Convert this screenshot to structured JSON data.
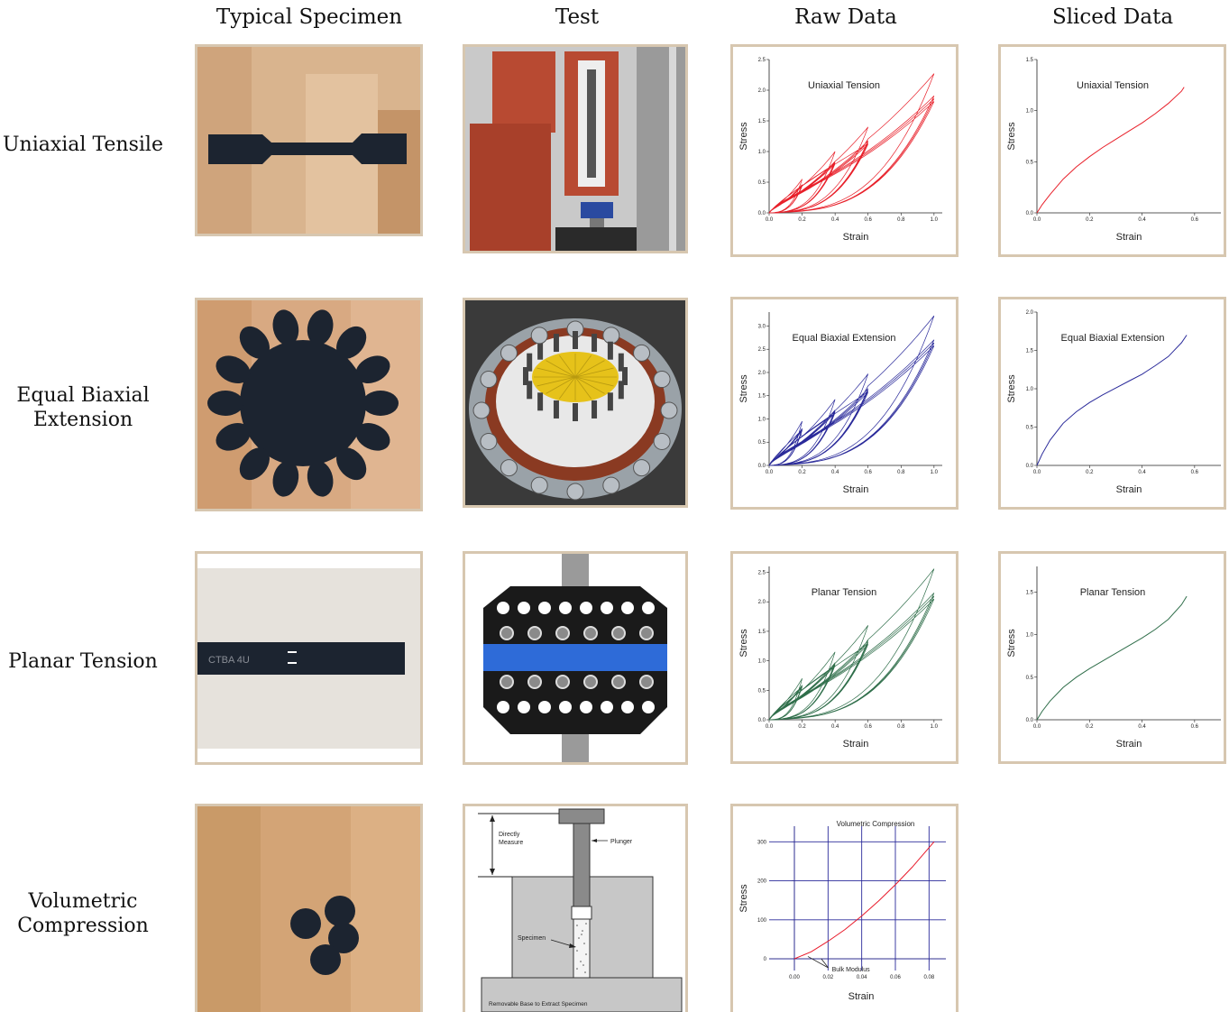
{
  "columns": {
    "specimen": "Typical Specimen",
    "test": "Test",
    "raw": "Raw Data",
    "sliced": "Sliced Data"
  },
  "rows": {
    "uniaxial": "Uniaxial Tensile",
    "biaxial_1": "Equal Biaxial",
    "biaxial_2": "Extension",
    "planar": "Planar Tension",
    "volumetric_1": "Volumetric",
    "volumetric_2": "Compression"
  },
  "colors": {
    "frame": "#d7c7b0",
    "uniaxial": "#e8202a",
    "biaxial": "#2a2a9a",
    "planar": "#2f6e4a",
    "volumetric": "#e81a2a",
    "grid": "#2a2a9a"
  },
  "test_labels": {
    "directly": "Directly",
    "measure": "Measure",
    "plunger": "Plunger",
    "specimen": "Specimen",
    "base": "Removable Base to Extract Specimen",
    "writing": "CTBA 4U"
  },
  "chart_data": [
    {
      "id": "raw-uniaxial",
      "type": "line",
      "title": "Uniaxial Tension",
      "xlabel": "Strain",
      "ylabel": "Stress",
      "xlim": [
        0,
        1.05
      ],
      "ylim": [
        0,
        2.5
      ],
      "xticks": [
        "0.0",
        "0.2",
        "0.4",
        "0.6",
        "0.8",
        "1.0"
      ],
      "yticks": [
        "0.0",
        "0.5",
        "1.0",
        "1.5",
        "2.0",
        "2.5"
      ],
      "ytick_values": [
        0,
        0.5,
        1.0,
        1.5,
        2.0,
        2.5
      ],
      "series": [
        {
          "max_strains": [
            0.2,
            0.4,
            0.6,
            1.0
          ],
          "peak_stresses": [
            0.55,
            1.0,
            1.4,
            2.27
          ]
        }
      ]
    },
    {
      "id": "sliced-uniaxial",
      "type": "line",
      "title": "Uniaxial Tension",
      "xlabel": "Strain",
      "ylabel": "Stress",
      "xlim": [
        0,
        0.7
      ],
      "ylim": [
        0,
        1.5
      ],
      "xticks": [
        "0.0",
        "0.2",
        "0.4",
        "0.6"
      ],
      "yticks": [
        "0.0",
        "0.5",
        "1.0",
        "1.5"
      ],
      "ytick_values": [
        0,
        0.5,
        1.0,
        1.5
      ],
      "series": [
        {
          "x": [
            0,
            0.02,
            0.05,
            0.1,
            0.15,
            0.2,
            0.25,
            0.3,
            0.35,
            0.4,
            0.45,
            0.5,
            0.55,
            0.56
          ],
          "y": [
            0,
            0.08,
            0.18,
            0.33,
            0.45,
            0.55,
            0.64,
            0.72,
            0.8,
            0.88,
            0.97,
            1.07,
            1.19,
            1.23
          ]
        }
      ]
    },
    {
      "id": "raw-biaxial",
      "type": "line",
      "title": "Equal Biaxial Extension",
      "xlabel": "Strain",
      "ylabel": "Stress",
      "xlim": [
        0,
        1.05
      ],
      "ylim": [
        0,
        3.3
      ],
      "xticks": [
        "0.0",
        "0.2",
        "0.4",
        "0.6",
        "0.8",
        "1.0"
      ],
      "yticks": [
        "0.0",
        "0.5",
        "1.0",
        "1.5",
        "2.0",
        "2.5",
        "3.0"
      ],
      "ytick_values": [
        0,
        0.5,
        1.0,
        1.5,
        2.0,
        2.5,
        3.0
      ],
      "series": [
        {
          "max_strains": [
            0.2,
            0.4,
            0.6,
            1.0
          ],
          "peak_stresses": [
            0.95,
            1.42,
            1.97,
            3.22
          ]
        }
      ]
    },
    {
      "id": "sliced-biaxial",
      "type": "line",
      "title": "Equal Biaxial Extension",
      "xlabel": "Strain",
      "ylabel": "Stress",
      "xlim": [
        0,
        0.7
      ],
      "ylim": [
        0,
        2.0
      ],
      "xticks": [
        "0.0",
        "0.2",
        "0.4",
        "0.6"
      ],
      "yticks": [
        "0.0",
        "0.5",
        "1.0",
        "1.5",
        "2.0"
      ],
      "ytick_values": [
        0,
        0.5,
        1.0,
        1.5,
        2.0
      ],
      "series": [
        {
          "x": [
            0,
            0.02,
            0.05,
            0.1,
            0.15,
            0.2,
            0.25,
            0.3,
            0.35,
            0.4,
            0.45,
            0.5,
            0.55,
            0.57
          ],
          "y": [
            0,
            0.15,
            0.33,
            0.55,
            0.7,
            0.82,
            0.92,
            1.01,
            1.1,
            1.19,
            1.3,
            1.42,
            1.6,
            1.7
          ]
        }
      ]
    },
    {
      "id": "raw-planar",
      "type": "line",
      "title": "Planar Tension",
      "xlabel": "Strain",
      "ylabel": "Stress",
      "xlim": [
        0,
        1.05
      ],
      "ylim": [
        0,
        2.6
      ],
      "xticks": [
        "0.0",
        "0.2",
        "0.4",
        "0.6",
        "0.8",
        "1.0"
      ],
      "yticks": [
        "0.0",
        "0.5",
        "1.0",
        "1.5",
        "2.0",
        "2.5"
      ],
      "ytick_values": [
        0,
        0.5,
        1.0,
        1.5,
        2.0,
        2.5
      ],
      "series": [
        {
          "max_strains": [
            0.2,
            0.4,
            0.6,
            1.0
          ],
          "peak_stresses": [
            0.7,
            1.15,
            1.6,
            2.56
          ]
        }
      ]
    },
    {
      "id": "sliced-planar",
      "type": "line",
      "title": "Planar Tension",
      "xlabel": "Strain",
      "ylabel": "Stress",
      "xlim": [
        0,
        0.7
      ],
      "ylim": [
        0,
        1.8
      ],
      "xticks": [
        "0.0",
        "0.2",
        "0.4",
        "0.6"
      ],
      "yticks": [
        "0.0",
        "0.5",
        "1.0",
        "1.5"
      ],
      "ytick_values": [
        0,
        0.5,
        1.0,
        1.5
      ],
      "series": [
        {
          "x": [
            0,
            0.02,
            0.05,
            0.1,
            0.15,
            0.2,
            0.25,
            0.3,
            0.35,
            0.4,
            0.45,
            0.5,
            0.55,
            0.57
          ],
          "y": [
            0,
            0.1,
            0.22,
            0.38,
            0.5,
            0.6,
            0.69,
            0.78,
            0.87,
            0.96,
            1.06,
            1.18,
            1.35,
            1.45
          ]
        }
      ]
    },
    {
      "id": "raw-volumetric",
      "type": "line",
      "title": "Volumetric Compression",
      "xlabel": "Strain",
      "ylabel": "Stress",
      "xlim": [
        -0.015,
        0.09
      ],
      "ylim": [
        -30,
        340
      ],
      "xticks": [
        "0.00",
        "0.02",
        "0.04",
        "0.06",
        "0.08"
      ],
      "yticks": [
        "0",
        "100",
        "200",
        "300"
      ],
      "ytick_values": [
        0,
        100,
        200,
        300
      ],
      "grid": true,
      "annotation": "Bulk Modulus",
      "series": [
        {
          "x": [
            0,
            0.01,
            0.02,
            0.03,
            0.04,
            0.05,
            0.06,
            0.07,
            0.08,
            0.083
          ],
          "y": [
            0,
            18,
            45,
            75,
            110,
            148,
            190,
            235,
            285,
            300
          ]
        }
      ]
    }
  ]
}
